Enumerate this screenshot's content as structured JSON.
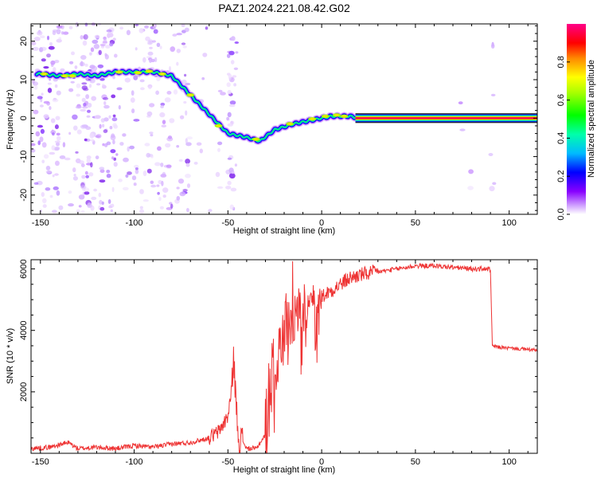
{
  "title": "PAZ1.2024.221.08.42.G02",
  "chart_data": [
    {
      "type": "heatmap",
      "xlabel": "Height of straight line (km)",
      "ylabel": "Frequency (Hz)",
      "xlim": [
        -155,
        115
      ],
      "ylim": [
        -25,
        24.5
      ],
      "xticks": [
        -150,
        -100,
        -50,
        0,
        50,
        100
      ],
      "yticks": [
        -20,
        -10,
        0,
        10,
        20
      ],
      "colorbar": {
        "label": "Normalized spectral amplitude",
        "range": [
          0,
          1
        ],
        "ticks": [
          0.0,
          0.2,
          0.4,
          0.6,
          0.8
        ],
        "tick_labels": [
          "0.0",
          "0.2",
          "0.4",
          "0.6",
          "0.8"
        ],
        "colors": [
          "#ffffff",
          "#8800ff",
          "#0000ff",
          "#00ccff",
          "#00ff00",
          "#ffff00",
          "#ff8800",
          "#ff0000",
          "#ff0088"
        ]
      },
      "ridge": {
        "x": [
          -150,
          -140,
          -130,
          -120,
          -110,
          -100,
          -90,
          -80,
          -70,
          -60,
          -50,
          -40,
          -33,
          -25,
          -15,
          -5,
          5,
          10,
          15,
          20,
          115
        ],
        "y": [
          11.5,
          11,
          11.5,
          11,
          12,
          12,
          12,
          11,
          6,
          1,
          -4,
          -5,
          -6,
          -3,
          -1.5,
          -0.5,
          0.5,
          0.5,
          0.5,
          0,
          0
        ]
      }
    },
    {
      "type": "line",
      "xlabel": "Height of straight line (km)",
      "ylabel": "SNR (10 * v/v)",
      "xlim": [
        -155,
        115
      ],
      "ylim": [
        0,
        6300
      ],
      "xticks": [
        -150,
        -100,
        -50,
        0,
        50,
        100
      ],
      "yticks": [
        2000,
        4000,
        6000
      ],
      "color": "#ee3333",
      "x": [
        -155,
        -145,
        -135,
        -130,
        -120,
        -110,
        -100,
        -90,
        -80,
        -70,
        -60,
        -55,
        -50,
        -48,
        -47,
        -46,
        -45,
        -44,
        -42,
        -40,
        -35,
        -30,
        -28,
        -25,
        -22,
        -20,
        -17,
        -15,
        -10,
        -5,
        0,
        5,
        10,
        15,
        20,
        30,
        40,
        50,
        60,
        70,
        80,
        89,
        90,
        91,
        95,
        100,
        105,
        110,
        115
      ],
      "y": [
        150,
        200,
        350,
        150,
        200,
        150,
        250,
        200,
        300,
        350,
        500,
        700,
        1200,
        2000,
        3200,
        2000,
        1000,
        500,
        400,
        150,
        150,
        600,
        1800,
        3000,
        3500,
        4000,
        4300,
        4500,
        4800,
        5000,
        5100,
        5300,
        5500,
        5700,
        5800,
        5900,
        6000,
        6100,
        6100,
        6050,
        6000,
        6000,
        5950,
        3500,
        3450,
        3420,
        3400,
        3380,
        3350
      ]
    }
  ]
}
